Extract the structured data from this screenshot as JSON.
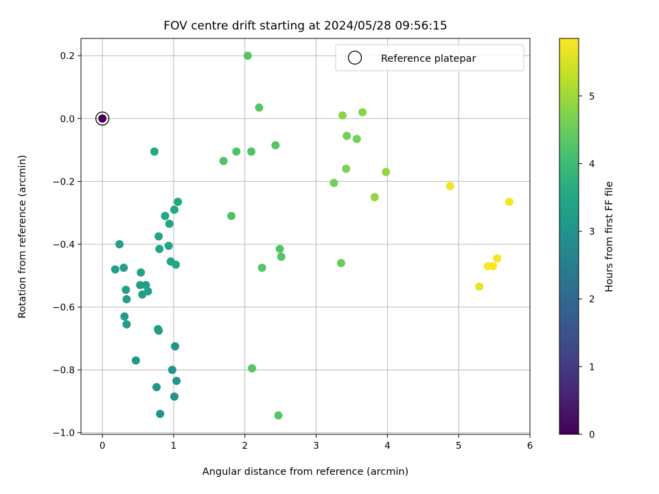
{
  "chart_data": {
    "type": "scatter",
    "title": "FOV centre drift starting at 2024/05/28 09:56:15",
    "xlabel": "Angular distance from reference (arcmin)",
    "ylabel": "Rotation from reference (arcmin)",
    "xlim": [
      -0.3,
      6
    ],
    "ylim": [
      -1.005,
      0.255
    ],
    "xticks": [
      0,
      1,
      2,
      3,
      4,
      5,
      6
    ],
    "yticks": [
      0.2,
      0.0,
      -0.2,
      -0.4,
      -0.6,
      -0.8,
      -1.0
    ],
    "xtick_labels": [
      "0",
      "1",
      "2",
      "3",
      "4",
      "5",
      "6"
    ],
    "ytick_labels": [
      "0.2",
      "0.0",
      "−0.2",
      "−0.4",
      "−0.6",
      "−0.8",
      "−1.0"
    ],
    "grid": true,
    "legend": {
      "position": "top-right",
      "entries": [
        "Reference platepar"
      ]
    },
    "reference_point": {
      "x": 0,
      "y": 0,
      "c": 0
    },
    "colorbar": {
      "label": "Hours from first FF file",
      "range": [
        0,
        5.85
      ],
      "ticks": [
        0,
        1,
        2,
        3,
        4,
        5
      ],
      "tick_labels": [
        "0",
        "1",
        "2",
        "3",
        "4",
        "5"
      ],
      "colormap": "viridis"
    },
    "points": [
      {
        "x": 0.18,
        "y": -0.48,
        "c": 3.3
      },
      {
        "x": 0.24,
        "y": -0.4,
        "c": 3.3
      },
      {
        "x": 0.3,
        "y": -0.475,
        "c": 3.3
      },
      {
        "x": 0.33,
        "y": -0.545,
        "c": 3.3
      },
      {
        "x": 0.34,
        "y": -0.575,
        "c": 3.25
      },
      {
        "x": 0.31,
        "y": -0.63,
        "c": 3.2
      },
      {
        "x": 0.34,
        "y": -0.655,
        "c": 3.2
      },
      {
        "x": 0.47,
        "y": -0.77,
        "c": 3.1
      },
      {
        "x": 0.53,
        "y": -0.53,
        "c": 3.3
      },
      {
        "x": 0.54,
        "y": -0.49,
        "c": 3.3
      },
      {
        "x": 0.56,
        "y": -0.56,
        "c": 3.3
      },
      {
        "x": 0.61,
        "y": -0.53,
        "c": 3.3
      },
      {
        "x": 0.64,
        "y": -0.55,
        "c": 3.3
      },
      {
        "x": 0.73,
        "y": -0.105,
        "c": 3.5
      },
      {
        "x": 0.79,
        "y": -0.375,
        "c": 3.4
      },
      {
        "x": 0.8,
        "y": -0.415,
        "c": 3.4
      },
      {
        "x": 0.78,
        "y": -0.67,
        "c": 3.3
      },
      {
        "x": 0.79,
        "y": -0.675,
        "c": 3.2
      },
      {
        "x": 0.88,
        "y": -0.31,
        "c": 3.4
      },
      {
        "x": 0.93,
        "y": -0.405,
        "c": 3.4
      },
      {
        "x": 0.94,
        "y": -0.335,
        "c": 3.4
      },
      {
        "x": 0.96,
        "y": -0.455,
        "c": 3.4
      },
      {
        "x": 1.01,
        "y": -0.29,
        "c": 3.5
      },
      {
        "x": 1.03,
        "y": -0.465,
        "c": 3.5
      },
      {
        "x": 1.06,
        "y": -0.265,
        "c": 3.5
      },
      {
        "x": 0.76,
        "y": -0.855,
        "c": 3.0
      },
      {
        "x": 0.81,
        "y": -0.94,
        "c": 3.0
      },
      {
        "x": 0.98,
        "y": -0.8,
        "c": 3.0
      },
      {
        "x": 1.01,
        "y": -0.885,
        "c": 3.0
      },
      {
        "x": 1.02,
        "y": -0.725,
        "c": 3.0
      },
      {
        "x": 1.04,
        "y": -0.835,
        "c": 3.0
      },
      {
        "x": 1.7,
        "y": -0.135,
        "c": 4.2
      },
      {
        "x": 1.81,
        "y": -0.31,
        "c": 4.2
      },
      {
        "x": 1.88,
        "y": -0.105,
        "c": 4.2
      },
      {
        "x": 2.04,
        "y": 0.2,
        "c": 4.3
      },
      {
        "x": 2.09,
        "y": -0.105,
        "c": 4.2
      },
      {
        "x": 2.1,
        "y": -0.795,
        "c": 4.3
      },
      {
        "x": 2.2,
        "y": 0.035,
        "c": 4.3
      },
      {
        "x": 2.24,
        "y": -0.475,
        "c": 4.3
      },
      {
        "x": 2.43,
        "y": -0.085,
        "c": 4.3
      },
      {
        "x": 2.47,
        "y": -0.945,
        "c": 4.3
      },
      {
        "x": 2.49,
        "y": -0.415,
        "c": 4.3
      },
      {
        "x": 2.51,
        "y": -0.44,
        "c": 4.3
      },
      {
        "x": 3.25,
        "y": -0.205,
        "c": 4.6
      },
      {
        "x": 3.35,
        "y": -0.46,
        "c": 4.5
      },
      {
        "x": 3.37,
        "y": 0.01,
        "c": 4.8
      },
      {
        "x": 3.42,
        "y": -0.16,
        "c": 4.7
      },
      {
        "x": 3.43,
        "y": -0.055,
        "c": 4.6
      },
      {
        "x": 3.57,
        "y": -0.065,
        "c": 4.6
      },
      {
        "x": 3.65,
        "y": 0.02,
        "c": 4.8
      },
      {
        "x": 3.82,
        "y": -0.25,
        "c": 4.9
      },
      {
        "x": 3.98,
        "y": -0.17,
        "c": 4.9
      },
      {
        "x": 4.88,
        "y": -0.215,
        "c": 5.7
      },
      {
        "x": 5.29,
        "y": -0.535,
        "c": 5.65
      },
      {
        "x": 5.41,
        "y": -0.47,
        "c": 5.8
      },
      {
        "x": 5.48,
        "y": -0.47,
        "c": 5.8
      },
      {
        "x": 5.54,
        "y": -0.445,
        "c": 5.8
      },
      {
        "x": 5.71,
        "y": -0.265,
        "c": 5.8
      }
    ]
  }
}
